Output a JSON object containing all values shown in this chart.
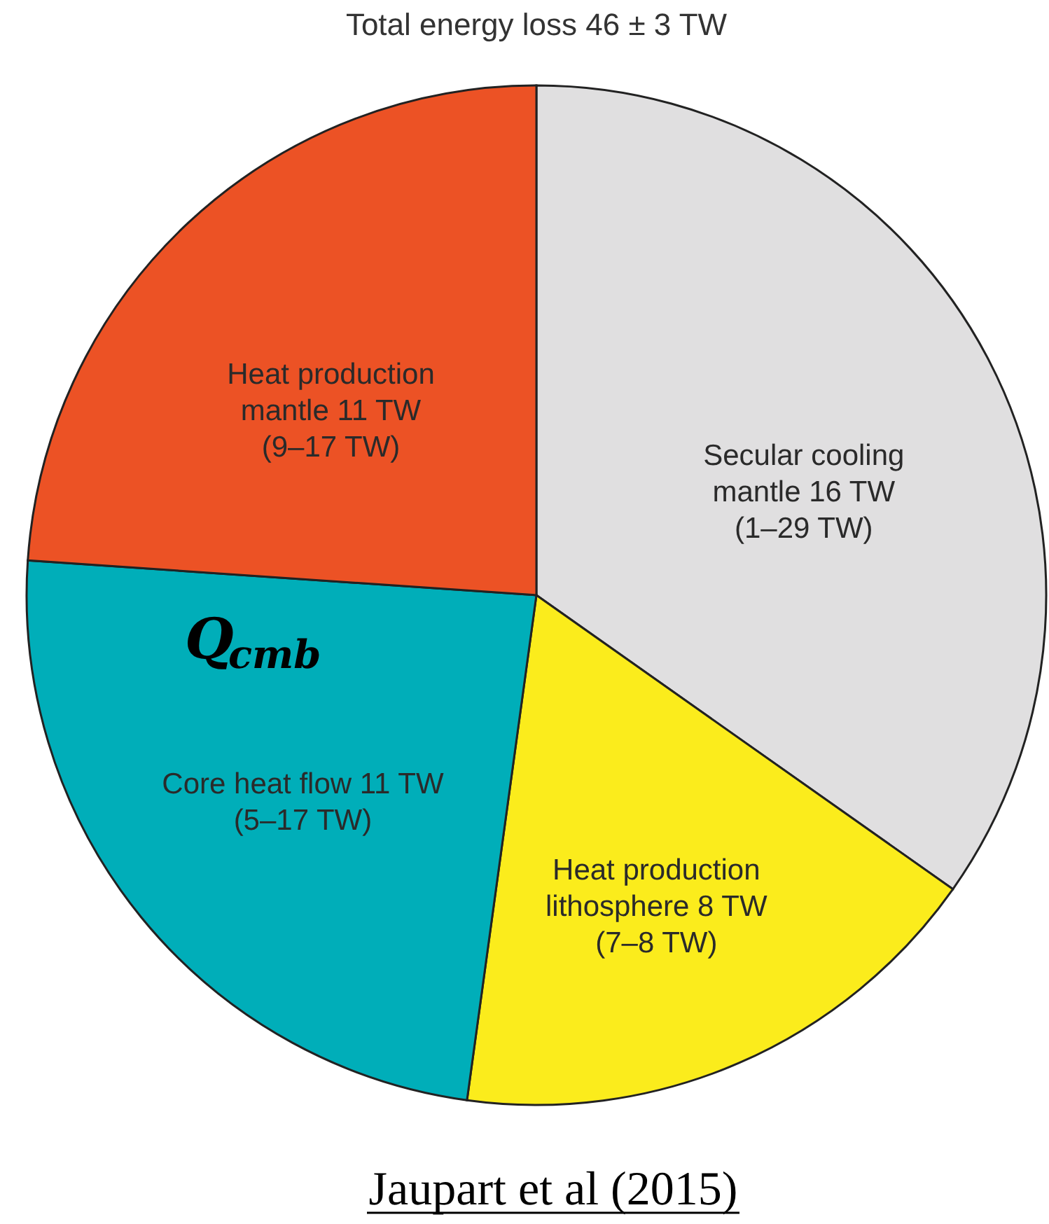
{
  "chart_data": {
    "type": "pie",
    "title": "Total energy loss 46 ± 3 TW",
    "categories": [
      "Secular cooling\nmantle 16 TW\n\n(1–29 TW)",
      "Heat production\nlithosphere 8 TW\n\n(7–8 TW)",
      "Core heat flow 11 TW\n\n(5–17 TW)",
      "Heat production\nmantle 11 TW\n\n(9–17 TW)"
    ],
    "values": [
      16,
      8,
      11,
      11
    ],
    "colors": [
      "#e0dfe0",
      "#fbec1c",
      "#00aeb9",
      "#ec5225"
    ],
    "annotations": [
      "Q$_{cmb}$",
      "Jaupart et al (2015)"
    ]
  }
}
